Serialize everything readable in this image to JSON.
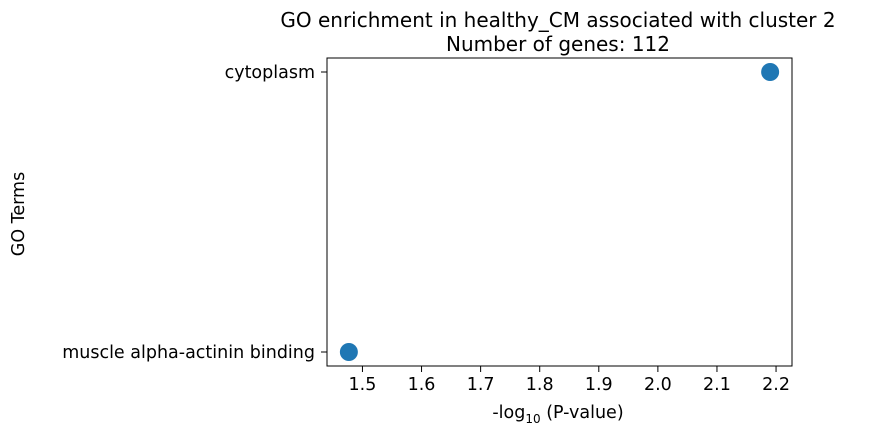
{
  "chart_data": {
    "type": "scatter",
    "title_line1": "GO enrichment in healthy_CM associated with cluster 2",
    "title_line2": "Number of genes: 112",
    "xlabel": {
      "prefix": "-log",
      "subscript": "10",
      "suffix": " (P-value)"
    },
    "ylabel": "GO Terms",
    "categories": [
      "muscle alpha-actinin binding",
      "cytoplasm"
    ],
    "points": [
      {
        "term": "cytoplasm",
        "x": 2.19
      },
      {
        "term": "muscle alpha-actinin binding",
        "x": 1.477
      }
    ],
    "xlim": [
      1.44,
      2.227
    ],
    "xticks": [
      1.5,
      1.6,
      1.7,
      1.8,
      1.9,
      2.0,
      2.1,
      2.2
    ],
    "xtick_labels": [
      "1.5",
      "1.6",
      "1.7",
      "1.8",
      "1.9",
      "2.0",
      "2.1",
      "2.2"
    ],
    "grid": false,
    "marker_color": "#1f77b4"
  }
}
